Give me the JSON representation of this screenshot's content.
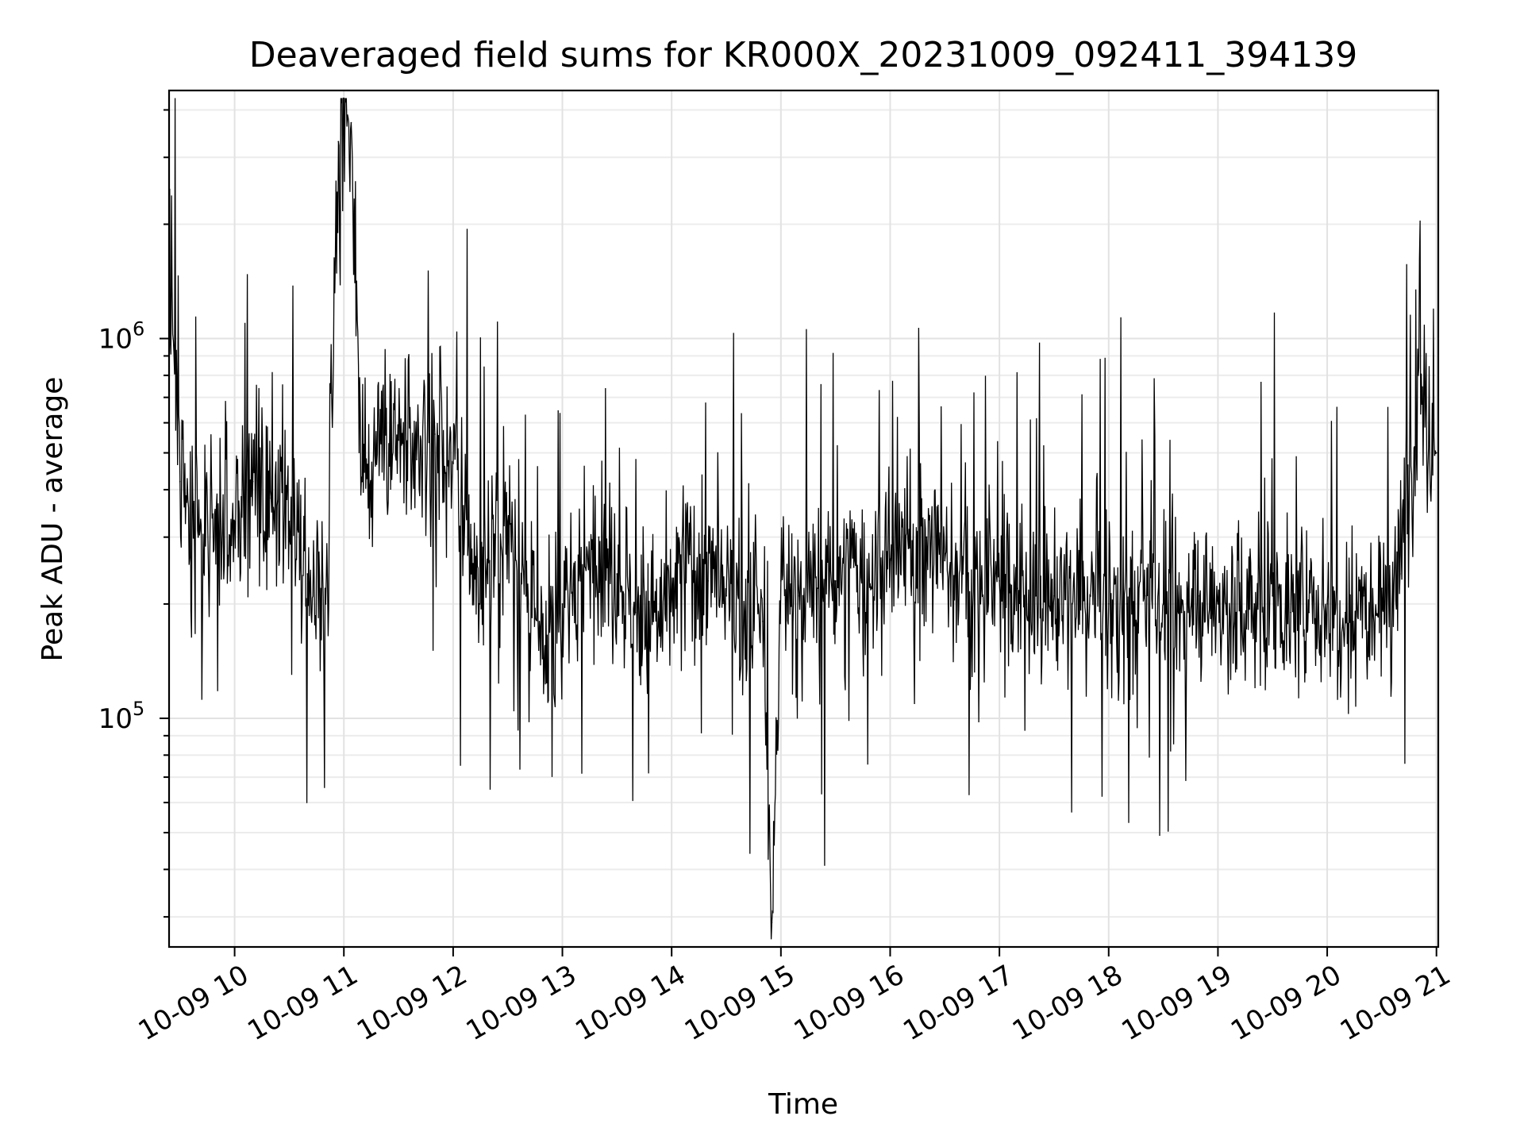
{
  "chart_data": {
    "type": "line",
    "title": "Deaveraged field sums for KR000X_20231009_092411_394139",
    "xlabel": "Time",
    "ylabel": "Peak ADU - average",
    "yscale": "log",
    "ylim": [
      25000,
      4500000
    ],
    "xlim": [
      "2023-10-09 09:24",
      "2023-10-09 21:01"
    ],
    "grid": true,
    "x_ticks": [
      "10-09 10",
      "10-09 11",
      "10-09 12",
      "10-09 13",
      "10-09 14",
      "10-09 15",
      "10-09 16",
      "10-09 17",
      "10-09 18",
      "10-09 19",
      "10-09 20",
      "10-09 21"
    ],
    "y_ticks": [
      {
        "mantissa": "10",
        "exponent": "5",
        "value": 100000
      },
      {
        "mantissa": "10",
        "exponent": "6",
        "value": 1000000
      }
    ],
    "series": [
      {
        "color": "#000000",
        "x": [
          "2023-10-09 09:24",
          "2023-10-09 09:30",
          "2023-10-09 09:40",
          "2023-10-09 09:50",
          "2023-10-09 10:00",
          "2023-10-09 10:10",
          "2023-10-09 10:20",
          "2023-10-09 10:30",
          "2023-10-09 10:40",
          "2023-10-09 10:50",
          "2023-10-09 10:57",
          "2023-10-09 11:04",
          "2023-10-09 11:10",
          "2023-10-09 11:20",
          "2023-10-09 11:30",
          "2023-10-09 11:40",
          "2023-10-09 11:50",
          "2023-10-09 12:00",
          "2023-10-09 12:10",
          "2023-10-09 12:20",
          "2023-10-09 12:30",
          "2023-10-09 12:40",
          "2023-10-09 12:50",
          "2023-10-09 13:00",
          "2023-10-09 13:10",
          "2023-10-09 13:20",
          "2023-10-09 13:30",
          "2023-10-09 13:40",
          "2023-10-09 13:50",
          "2023-10-09 14:00",
          "2023-10-09 14:10",
          "2023-10-09 14:20",
          "2023-10-09 14:30",
          "2023-10-09 14:40",
          "2023-10-09 14:50",
          "2023-10-09 14:55",
          "2023-10-09 15:00",
          "2023-10-09 15:10",
          "2023-10-09 15:20",
          "2023-10-09 15:30",
          "2023-10-09 15:40",
          "2023-10-09 15:50",
          "2023-10-09 16:00",
          "2023-10-09 16:10",
          "2023-10-09 16:20",
          "2023-10-09 16:30",
          "2023-10-09 16:40",
          "2023-10-09 16:50",
          "2023-10-09 17:00",
          "2023-10-09 17:10",
          "2023-10-09 17:20",
          "2023-10-09 17:30",
          "2023-10-09 17:40",
          "2023-10-09 17:50",
          "2023-10-09 18:00",
          "2023-10-09 18:10",
          "2023-10-09 18:20",
          "2023-10-09 18:30",
          "2023-10-09 18:40",
          "2023-10-09 18:50",
          "2023-10-09 19:00",
          "2023-10-09 19:10",
          "2023-10-09 19:20",
          "2023-10-09 19:30",
          "2023-10-09 19:40",
          "2023-10-09 19:50",
          "2023-10-09 20:00",
          "2023-10-09 20:10",
          "2023-10-09 20:20",
          "2023-10-09 20:30",
          "2023-10-09 20:40",
          "2023-10-09 20:50",
          "2023-10-09 21:00"
        ],
        "y": [
          2100000,
          420000,
          300000,
          360000,
          330000,
          420000,
          380000,
          330000,
          240000,
          200000,
          3300000,
          3700000,
          420000,
          650000,
          540000,
          480000,
          560000,
          470000,
          240000,
          260000,
          330000,
          210000,
          140000,
          200000,
          230000,
          300000,
          240000,
          190000,
          180000,
          210000,
          270000,
          230000,
          210000,
          190000,
          180000,
          29000,
          230000,
          210000,
          220000,
          230000,
          250000,
          220000,
          260000,
          280000,
          300000,
          260000,
          240000,
          220000,
          230000,
          220000,
          210000,
          210000,
          200000,
          210000,
          200000,
          200000,
          210000,
          200000,
          190000,
          210000,
          200000,
          190000,
          200000,
          210000,
          190000,
          190000,
          200000,
          190000,
          210000,
          220000,
          240000,
          800000,
          500000
        ]
      }
    ]
  }
}
